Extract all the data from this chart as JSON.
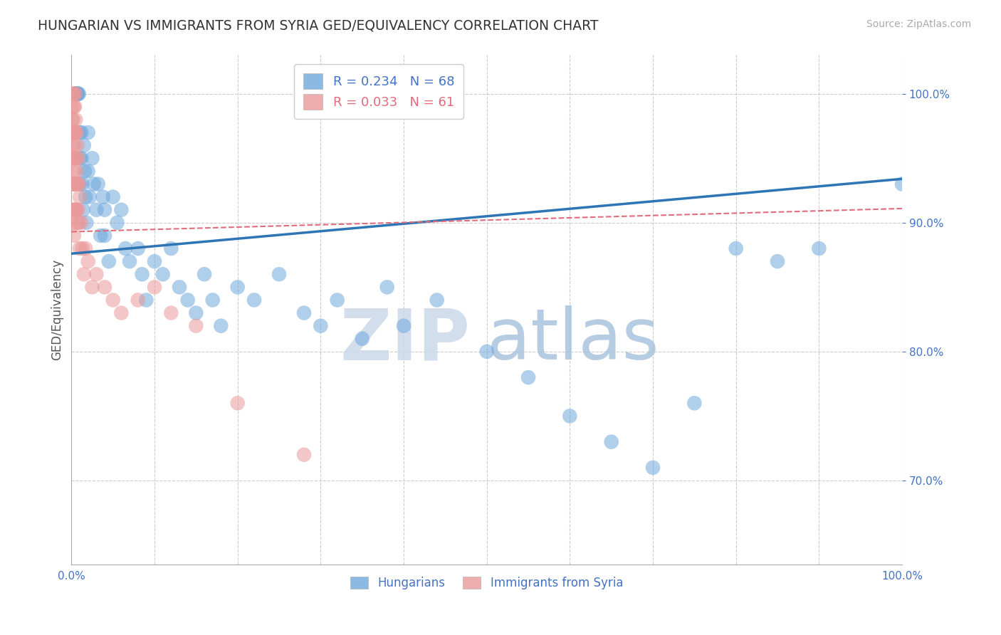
{
  "title": "HUNGARIAN VS IMMIGRANTS FROM SYRIA GED/EQUIVALENCY CORRELATION CHART",
  "source": "Source: ZipAtlas.com",
  "ylabel": "GED/Equivalency",
  "xlim": [
    0.0,
    1.0
  ],
  "ylim": [
    0.635,
    1.03
  ],
  "yticks": [
    0.7,
    0.8,
    0.9,
    1.0
  ],
  "ytick_labels": [
    "70.0%",
    "80.0%",
    "90.0%",
    "100.0%"
  ],
  "xtick_labels": [
    "0.0%",
    "",
    "",
    "",
    "",
    "",
    "",
    "",
    "",
    "",
    "100.0%"
  ],
  "tick_color": "#4472c4",
  "grid_color": "#cccccc",
  "blue_color": "#6fa8dc",
  "pink_color": "#ea9999",
  "blue_line_color": "#2e75b6",
  "pink_line_color": "#e06c7c",
  "legend_blue_label": "R = 0.234   N = 68",
  "legend_pink_label": "R = 0.033   N = 61",
  "legend_blue_color": "#6fa8dc",
  "legend_pink_color": "#ea9999",
  "watermark_zip": "ZIP",
  "watermark_atlas": "atlas",
  "bottom_legend_blue": "Hungarians",
  "bottom_legend_pink": "Immigrants from Syria",
  "blue_intercept": 0.876,
  "blue_slope": 0.058,
  "pink_intercept": 0.893,
  "pink_slope": 0.018,
  "blue_x": [
    0.005,
    0.005,
    0.005,
    0.005,
    0.007,
    0.007,
    0.008,
    0.009,
    0.01,
    0.01,
    0.01,
    0.012,
    0.012,
    0.013,
    0.014,
    0.015,
    0.016,
    0.017,
    0.018,
    0.02,
    0.02,
    0.022,
    0.025,
    0.027,
    0.03,
    0.032,
    0.035,
    0.038,
    0.04,
    0.04,
    0.045,
    0.05,
    0.055,
    0.06,
    0.065,
    0.07,
    0.08,
    0.085,
    0.09,
    0.1,
    0.11,
    0.12,
    0.13,
    0.14,
    0.15,
    0.16,
    0.17,
    0.18,
    0.2,
    0.22,
    0.25,
    0.28,
    0.3,
    0.32,
    0.35,
    0.38,
    0.4,
    0.44,
    0.5,
    0.55,
    0.6,
    0.65,
    0.7,
    0.75,
    0.8,
    0.85,
    0.9,
    1.0
  ],
  "blue_y": [
    1.0,
    1.0,
    1.0,
    1.0,
    1.0,
    1.0,
    1.0,
    1.0,
    0.97,
    0.95,
    0.93,
    0.97,
    0.95,
    0.93,
    0.91,
    0.96,
    0.94,
    0.92,
    0.9,
    0.97,
    0.94,
    0.92,
    0.95,
    0.93,
    0.91,
    0.93,
    0.89,
    0.92,
    0.91,
    0.89,
    0.87,
    0.92,
    0.9,
    0.91,
    0.88,
    0.87,
    0.88,
    0.86,
    0.84,
    0.87,
    0.86,
    0.88,
    0.85,
    0.84,
    0.83,
    0.86,
    0.84,
    0.82,
    0.85,
    0.84,
    0.86,
    0.83,
    0.82,
    0.84,
    0.81,
    0.85,
    0.82,
    0.84,
    0.8,
    0.78,
    0.75,
    0.73,
    0.71,
    0.76,
    0.88,
    0.87,
    0.88,
    0.93
  ],
  "pink_x": [
    0.001,
    0.001,
    0.001,
    0.001,
    0.001,
    0.001,
    0.001,
    0.001,
    0.002,
    0.002,
    0.002,
    0.002,
    0.002,
    0.002,
    0.003,
    0.003,
    0.003,
    0.003,
    0.003,
    0.003,
    0.003,
    0.003,
    0.004,
    0.004,
    0.004,
    0.004,
    0.004,
    0.005,
    0.005,
    0.005,
    0.005,
    0.005,
    0.005,
    0.006,
    0.006,
    0.006,
    0.007,
    0.007,
    0.007,
    0.008,
    0.008,
    0.009,
    0.009,
    0.01,
    0.01,
    0.012,
    0.013,
    0.015,
    0.017,
    0.02,
    0.025,
    0.03,
    0.04,
    0.05,
    0.06,
    0.08,
    0.1,
    0.12,
    0.15,
    0.2,
    0.28
  ],
  "pink_y": [
    1.0,
    0.99,
    0.98,
    0.97,
    0.96,
    0.95,
    0.93,
    0.91,
    1.0,
    0.98,
    0.97,
    0.95,
    0.93,
    0.9,
    1.0,
    0.99,
    0.97,
    0.96,
    0.94,
    0.93,
    0.91,
    0.89,
    0.99,
    0.97,
    0.95,
    0.93,
    0.91,
    1.0,
    0.98,
    0.97,
    0.95,
    0.93,
    0.91,
    0.97,
    0.94,
    0.91,
    0.96,
    0.93,
    0.9,
    0.95,
    0.91,
    0.93,
    0.9,
    0.92,
    0.88,
    0.9,
    0.88,
    0.86,
    0.88,
    0.87,
    0.85,
    0.86,
    0.85,
    0.84,
    0.83,
    0.84,
    0.85,
    0.83,
    0.82,
    0.76,
    0.72
  ]
}
